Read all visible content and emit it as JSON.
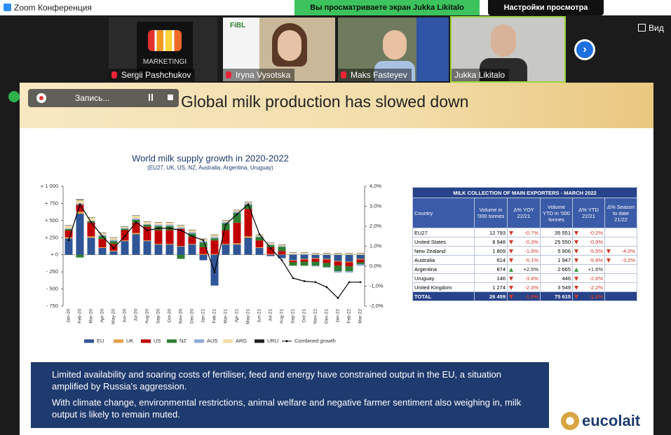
{
  "zoom": {
    "app_title": "Zoom Конференция",
    "banner": "Вы просматриваете экран Jukka Likitalo",
    "view_settings": "Настройки просмотра",
    "view_button": "Вид",
    "recording": "Запись...",
    "participants": [
      "Sergii Pashchukov",
      "Iryna Vysotska",
      "Maks Fasteyev",
      "Jukka Likitalo"
    ],
    "tile_texts": [
      "MARKETINGI",
      "FiBL"
    ]
  },
  "slide": {
    "title": "Global milk production has slowed down",
    "table": {
      "title": "MILK COLLECTION OF MAIN EXPORTERS - MARCH 2022",
      "columns": [
        "Country",
        "Volume in '000 tonnes",
        "Δ% YOY 22/21",
        "Volume YTD in '000 tonnes",
        "Δ% YTD 22/21",
        "Δ% Season to date 21/22"
      ],
      "rows": [
        [
          "EU27",
          "12 793",
          "-0.7%",
          "35 551",
          "-0.2%",
          null
        ],
        [
          "United States",
          "8 948",
          "-0.3%",
          "25 550",
          "-0.9%",
          null
        ],
        [
          "New Zealand",
          "1 809",
          "-1.9%",
          "5 906",
          "-5.5%",
          "-4.0%"
        ],
        [
          "Australia",
          "614",
          "-5.1%",
          "1 947",
          "-5.8%",
          "-3.2%"
        ],
        [
          "Argentina",
          "874",
          "+2.5%",
          "2 665",
          "+1.6%",
          null
        ],
        [
          "Uruguay",
          "146",
          "-3.4%",
          "446",
          "-2.6%",
          null
        ],
        [
          "United Kingdom",
          "1 274",
          "-2.3%",
          "3 549",
          "-2.2%",
          null
        ],
        [
          "TOTAL",
          "26 459",
          "-1.0%",
          "75 615",
          "-1.2%",
          null
        ]
      ]
    },
    "paragraphs": [
      "Limited availability and soaring costs of fertiliser, feed and energy have constrained output in the EU, a situation amplified by Russia's aggression.",
      "With climate change, environmental restrictions, animal welfare and negative farmer sentiment also weighing in, milk output is likely to remain muted."
    ],
    "logo": "eucolait"
  },
  "chart_data": {
    "type": "bar",
    "stacked": true,
    "title": "World milk supply growth in 2020-2022",
    "subtitle": "(EU27, UK, US, NZ, Australia, Argentina, Uruguay)",
    "categories": [
      "Jan-20",
      "Feb-20",
      "Mar-20",
      "Apr-20",
      "May-20",
      "Jun-20",
      "Jul-20",
      "Aug-20",
      "Sep-20",
      "Oct-20",
      "Nov-20",
      "Dec-20",
      "Jan-21",
      "Feb-21",
      "Mar-21",
      "Apr-21",
      "May-21",
      "Jun-21",
      "Jul-21",
      "Aug-21",
      "Sep-21",
      "Oct-21",
      "Nov-21",
      "Dec-21",
      "Jan-22",
      "Feb-22",
      "Mar-22"
    ],
    "series": [
      {
        "name": "EU",
        "color": "#2f5597",
        "values": [
          240,
          600,
          250,
          100,
          50,
          200,
          300,
          200,
          150,
          150,
          120,
          150,
          -80,
          -450,
          150,
          150,
          250,
          100,
          -20,
          -50,
          -80,
          -60,
          -50,
          -60,
          -90,
          -100,
          -60
        ]
      },
      {
        "name": "UK",
        "color": "#e3a049",
        "values": [
          15,
          30,
          20,
          10,
          10,
          10,
          20,
          10,
          10,
          10,
          10,
          10,
          10,
          10,
          10,
          20,
          20,
          10,
          10,
          5,
          -10,
          -10,
          -10,
          -10,
          -10,
          -10,
          -10
        ]
      },
      {
        "name": "US",
        "color": "#c00000",
        "values": [
          100,
          100,
          200,
          120,
          100,
          150,
          150,
          200,
          200,
          200,
          250,
          100,
          100,
          200,
          200,
          300,
          400,
          100,
          100,
          50,
          -20,
          -30,
          -40,
          -50,
          -60,
          -60,
          -40
        ]
      },
      {
        "name": "NZ",
        "color": "#2e7d32",
        "values": [
          20,
          -40,
          20,
          40,
          40,
          20,
          40,
          30,
          60,
          60,
          -60,
          50,
          70,
          30,
          100,
          140,
          60,
          50,
          30,
          60,
          -50,
          -60,
          -60,
          -60,
          -80,
          -70,
          -30
        ]
      },
      {
        "name": "AUS",
        "color": "#8fa8d8",
        "values": [
          10,
          20,
          10,
          20,
          20,
          10,
          20,
          10,
          20,
          20,
          20,
          20,
          20,
          20,
          20,
          20,
          20,
          10,
          10,
          10,
          10,
          10,
          -10,
          -10,
          -20,
          -20,
          -20
        ]
      },
      {
        "name": "ARG",
        "color": "#f2dca6",
        "values": [
          40,
          50,
          40,
          30,
          30,
          20,
          40,
          30,
          30,
          30,
          30,
          30,
          30,
          30,
          20,
          20,
          20,
          20,
          20,
          20,
          20,
          20,
          20,
          20,
          20,
          20,
          20
        ]
      },
      {
        "name": "URU",
        "color": "#222222",
        "values": [
          5,
          10,
          5,
          5,
          5,
          5,
          5,
          5,
          5,
          5,
          5,
          5,
          5,
          5,
          5,
          5,
          5,
          5,
          5,
          5,
          5,
          5,
          5,
          5,
          5,
          5,
          5
        ]
      },
      {
        "name": "Combined growth",
        "type": "line",
        "axis": "y2",
        "color": "#000000",
        "values": [
          1.3,
          3.1,
          2.2,
          1.5,
          0.9,
          1.5,
          2.2,
          1.8,
          1.9,
          1.9,
          1.8,
          1.5,
          1.3,
          -0.3,
          2.1,
          2.6,
          3.1,
          1.6,
          0.9,
          0.3,
          -0.6,
          -0.75,
          -0.8,
          -1.05,
          -1.6,
          -0.8,
          -0.8
        ]
      }
    ],
    "ylim": [
      -750,
      1000
    ],
    "yticks": [
      {
        "value": 1000,
        "label": "+ 1 000"
      },
      {
        "value": 750,
        "label": "+ 750"
      },
      {
        "value": 500,
        "label": "+ 500"
      },
      {
        "value": 250,
        "label": "+ 250"
      },
      {
        "value": 0,
        "label": "+ 0"
      },
      {
        "value": -250,
        "label": "- 250"
      },
      {
        "value": -500,
        "label": "- 500"
      },
      {
        "value": -750,
        "label": "- 750"
      }
    ],
    "y2lim": [
      -2,
      4
    ],
    "y2ticks": [
      {
        "value": 4,
        "label": "4,0%"
      },
      {
        "value": 3,
        "label": "3,0%"
      },
      {
        "value": 2,
        "label": "2,0%"
      },
      {
        "value": 1,
        "label": "1,0%"
      },
      {
        "value": 0,
        "label": "0,0%"
      },
      {
        "value": -1,
        "label": "-1,0%"
      },
      {
        "value": -2,
        "label": "-2,0%"
      }
    ],
    "legend": "bottom",
    "grid": false
  }
}
